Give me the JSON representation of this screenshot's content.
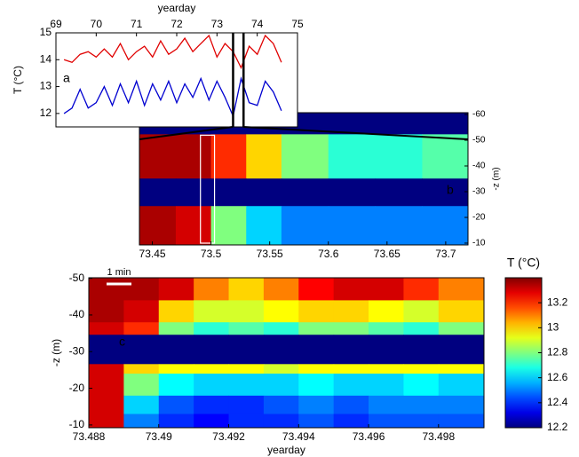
{
  "chart_data": [
    {
      "type": "line",
      "xlabel": "yearday",
      "ylabel": "T (°C)",
      "label": "a",
      "xlim": [
        69,
        75
      ],
      "xticks": [
        69,
        70,
        71,
        72,
        73,
        74,
        75
      ],
      "ylim": [
        11.5,
        15
      ],
      "yticks": [
        12,
        13,
        14,
        15
      ],
      "x": [
        69.2,
        69.4,
        69.6,
        69.8,
        70.0,
        70.2,
        70.4,
        70.6,
        70.8,
        71.0,
        71.2,
        71.4,
        71.6,
        71.8,
        72.0,
        72.2,
        72.4,
        72.6,
        72.8,
        73.0,
        73.2,
        73.4,
        73.6,
        73.8,
        74.0,
        74.2,
        74.4,
        74.6
      ],
      "series": [
        {
          "color": "#e00000",
          "values": [
            14.0,
            13.9,
            14.2,
            14.3,
            14.1,
            14.4,
            14.1,
            14.6,
            14.0,
            14.3,
            14.5,
            14.1,
            14.7,
            14.2,
            14.4,
            14.8,
            14.3,
            14.6,
            14.9,
            14.1,
            14.6,
            14.3,
            13.7,
            14.5,
            14.2,
            14.9,
            14.6,
            13.9
          ]
        },
        {
          "color": "#0000d0",
          "values": [
            12.0,
            12.2,
            12.9,
            12.2,
            12.4,
            13.0,
            12.3,
            13.1,
            12.4,
            13.2,
            12.3,
            13.1,
            12.5,
            13.2,
            12.4,
            13.1,
            12.6,
            13.3,
            12.5,
            13.2,
            12.6,
            11.9,
            13.3,
            12.4,
            12.3,
            13.2,
            12.8,
            12.1
          ]
        }
      ],
      "markers": [
        73.4,
        73.66
      ]
    },
    {
      "type": "heatmap",
      "ylabel": "-z (m)",
      "label": "b",
      "yaxis": "right",
      "yreverse": true,
      "xlim": [
        73.439,
        73.719
      ],
      "xticks": [
        73.45,
        73.5,
        73.55,
        73.6,
        73.65,
        73.7
      ],
      "ylim": [
        -60.7,
        -9.3
      ],
      "yticks": [
        -60,
        -50,
        -40,
        -30,
        -20,
        -10
      ],
      "clim": [
        12.2,
        13.4
      ],
      "xbins": [
        73.439,
        73.47,
        73.5,
        73.53,
        73.56,
        73.6,
        73.64,
        73.68,
        73.719
      ],
      "ybins": [
        -60.7,
        -52.3,
        -35.1,
        -24.4,
        -9.3
      ],
      "z": [
        [
          12.2,
          12.2,
          12.2,
          12.2,
          12.2,
          12.2,
          12.2,
          12.2
        ],
        [
          13.35,
          13.35,
          13.2,
          13.0,
          12.8,
          12.7,
          12.7,
          12.75
        ],
        [
          12.2,
          12.2,
          12.2,
          12.2,
          12.2,
          12.2,
          12.2,
          12.2
        ],
        [
          13.35,
          13.3,
          12.8,
          12.6,
          12.5,
          12.5,
          12.5,
          12.5
        ]
      ],
      "box": [
        73.491,
        73.503
      ]
    },
    {
      "type": "heatmap",
      "xlabel": "yearday",
      "ylabel": "-z (m)",
      "label": "c",
      "scalebar": "1 min",
      "yreverse": true,
      "xlim": [
        73.488,
        73.4993
      ],
      "xticks": [
        73.488,
        73.49,
        73.492,
        73.494,
        73.496,
        73.498
      ],
      "ylim": [
        -50.15,
        -9.25
      ],
      "yticks": [
        -50,
        -40,
        -30,
        -20,
        -10
      ],
      "clim": [
        12.2,
        13.4
      ],
      "xbins": [
        73.488,
        73.489,
        73.49,
        73.491,
        73.492,
        73.493,
        73.494,
        73.495,
        73.496,
        73.497,
        73.498,
        73.4993
      ],
      "ybins": [
        -50.15,
        -44,
        -38,
        -34.6,
        -26.6,
        -24,
        -18,
        -13,
        -9.25
      ],
      "z": [
        [
          13.35,
          13.35,
          13.3,
          13.1,
          13.0,
          13.1,
          13.25,
          13.3,
          13.3,
          13.2,
          13.1
        ],
        [
          13.35,
          13.3,
          13.0,
          12.9,
          12.9,
          12.95,
          13.0,
          13.0,
          12.95,
          12.9,
          13.0
        ],
        [
          13.3,
          13.2,
          12.8,
          12.7,
          12.75,
          12.7,
          12.8,
          12.8,
          12.75,
          12.7,
          12.8
        ],
        [
          12.2,
          12.2,
          12.2,
          12.2,
          12.2,
          12.2,
          12.2,
          12.2,
          12.2,
          12.2,
          12.2
        ],
        [
          13.3,
          13.0,
          12.95,
          12.95,
          12.95,
          12.9,
          12.95,
          12.95,
          12.95,
          12.95,
          12.95
        ],
        [
          13.3,
          12.8,
          12.65,
          12.6,
          12.6,
          12.6,
          12.65,
          12.6,
          12.6,
          12.65,
          12.6
        ],
        [
          13.3,
          12.6,
          12.45,
          12.4,
          12.4,
          12.45,
          12.5,
          12.45,
          12.5,
          12.5,
          12.5
        ],
        [
          13.3,
          12.5,
          12.4,
          12.35,
          12.4,
          12.4,
          12.45,
          12.4,
          12.45,
          12.45,
          12.45
        ]
      ],
      "colorbar": {
        "title": "T (°C)",
        "clim": [
          12.2,
          13.4
        ],
        "cticks": [
          12.2,
          12.4,
          12.6,
          12.8,
          13,
          13.2
        ]
      }
    }
  ]
}
